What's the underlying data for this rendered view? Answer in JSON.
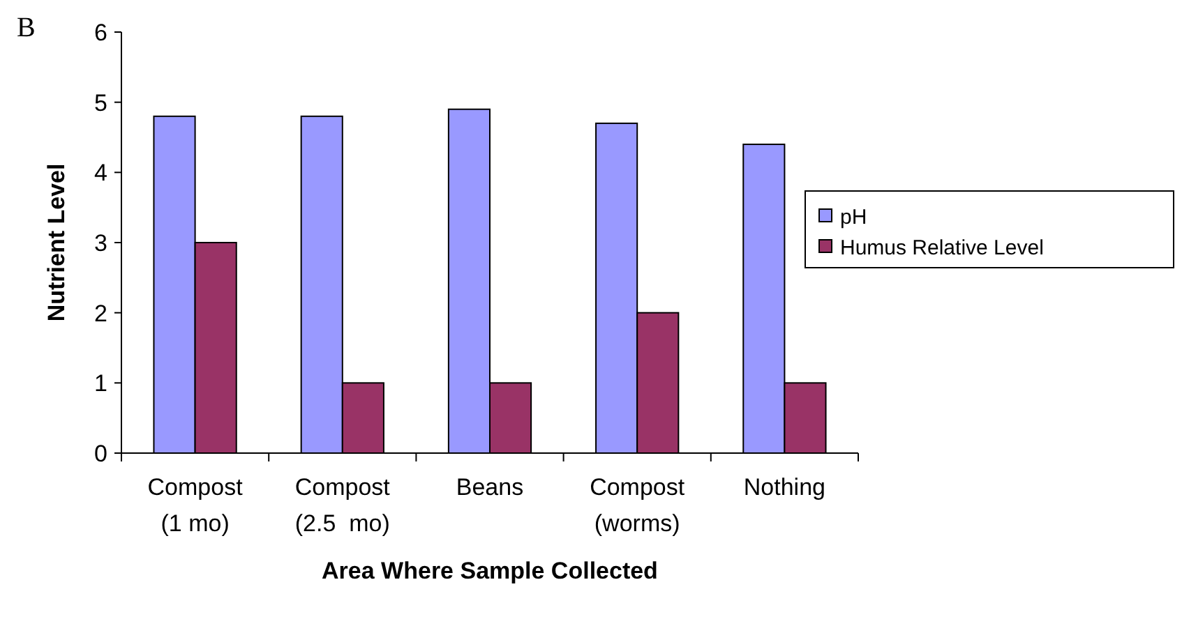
{
  "chart_data": {
    "type": "bar",
    "xlabel": "Area Where Sample Collected",
    "ylabel": "Nutrient Level",
    "annotations": [
      "B"
    ],
    "categories": [
      "Compost\n(1 mo)",
      "Compost\n(2.5  mo)",
      "Beans",
      "Compost\n(worms)",
      "Nothing"
    ],
    "series": [
      {
        "name": "pH",
        "color": "#9999ff",
        "values": [
          4.8,
          4.8,
          4.9,
          4.7,
          4.4
        ]
      },
      {
        "name": "Humus Relative Level",
        "color": "#993366",
        "values": [
          3,
          1,
          1,
          2,
          1
        ]
      }
    ],
    "ylim": [
      0,
      6
    ],
    "yticks": [
      0,
      1,
      2,
      3,
      4,
      5,
      6
    ],
    "grid": false,
    "legend": "right"
  }
}
